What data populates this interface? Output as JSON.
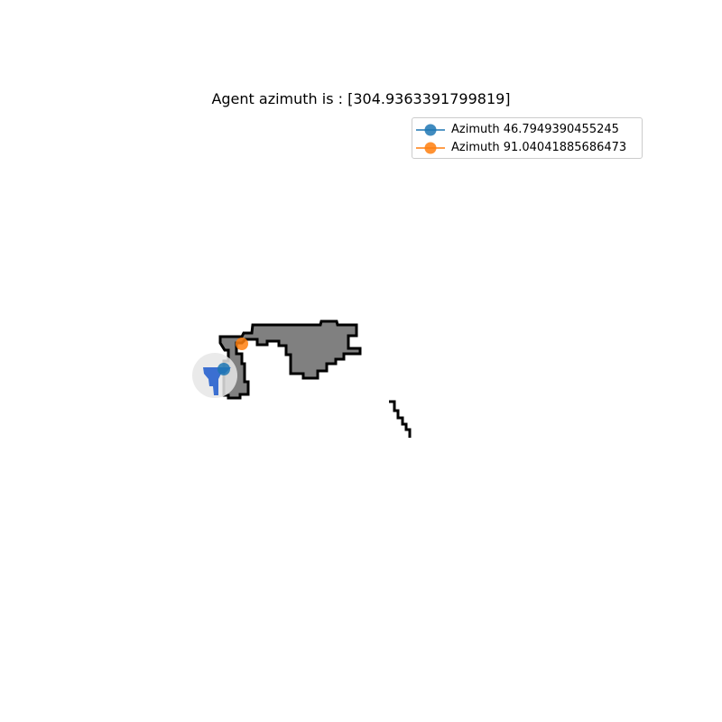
{
  "title": "Agent azimuth is : [304.9363391799819]",
  "legend": {
    "items": [
      {
        "label": "Azimuth 46.7949390455245",
        "color": "#1f77b4"
      },
      {
        "label": "Azimuth 91.04041885686473",
        "color": "#ff7f0e"
      }
    ]
  },
  "colors": {
    "obstacle_fill": "#808080",
    "obstacle_edge": "#000000",
    "agent": "#3b6fd1",
    "view_cone": "#e8e8e8"
  }
}
